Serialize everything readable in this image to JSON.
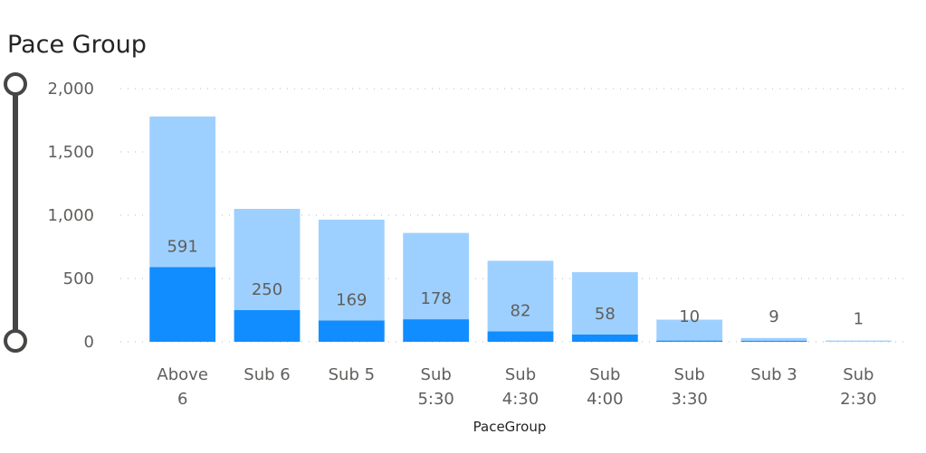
{
  "visual": {
    "title": "Pace Group"
  },
  "chart_data": {
    "type": "bar",
    "stacked": true,
    "xlabel": "PaceGroup",
    "ylabel": "",
    "ylim": [
      0,
      2000
    ],
    "yticks": [
      0,
      500,
      1000,
      1500,
      2000
    ],
    "ytick_labels": [
      "0",
      "500",
      "1,000",
      "1,500",
      "2,000"
    ],
    "grid": true,
    "categories": [
      [
        "Above",
        "6"
      ],
      [
        "Sub 6"
      ],
      [
        "Sub 5"
      ],
      [
        "Sub",
        "5:30"
      ],
      [
        "Sub",
        "4:30"
      ],
      [
        "Sub",
        "4:00"
      ],
      [
        "Sub",
        "3:30"
      ],
      [
        "Sub 3"
      ],
      [
        "Sub",
        "2:30"
      ]
    ],
    "series": [
      {
        "values": [
          591,
          250,
          169,
          178,
          82,
          58,
          10,
          9,
          1
        ],
        "color": "#118DFF"
      },
      {
        "values": [
          1189,
          800,
          796,
          682,
          558,
          492,
          165,
          21,
          9
        ],
        "color": "#9ED0FF"
      }
    ],
    "data_labels": [
      "591",
      "250",
      "169",
      "178",
      "82",
      "58",
      "10",
      "9",
      "1"
    ]
  }
}
